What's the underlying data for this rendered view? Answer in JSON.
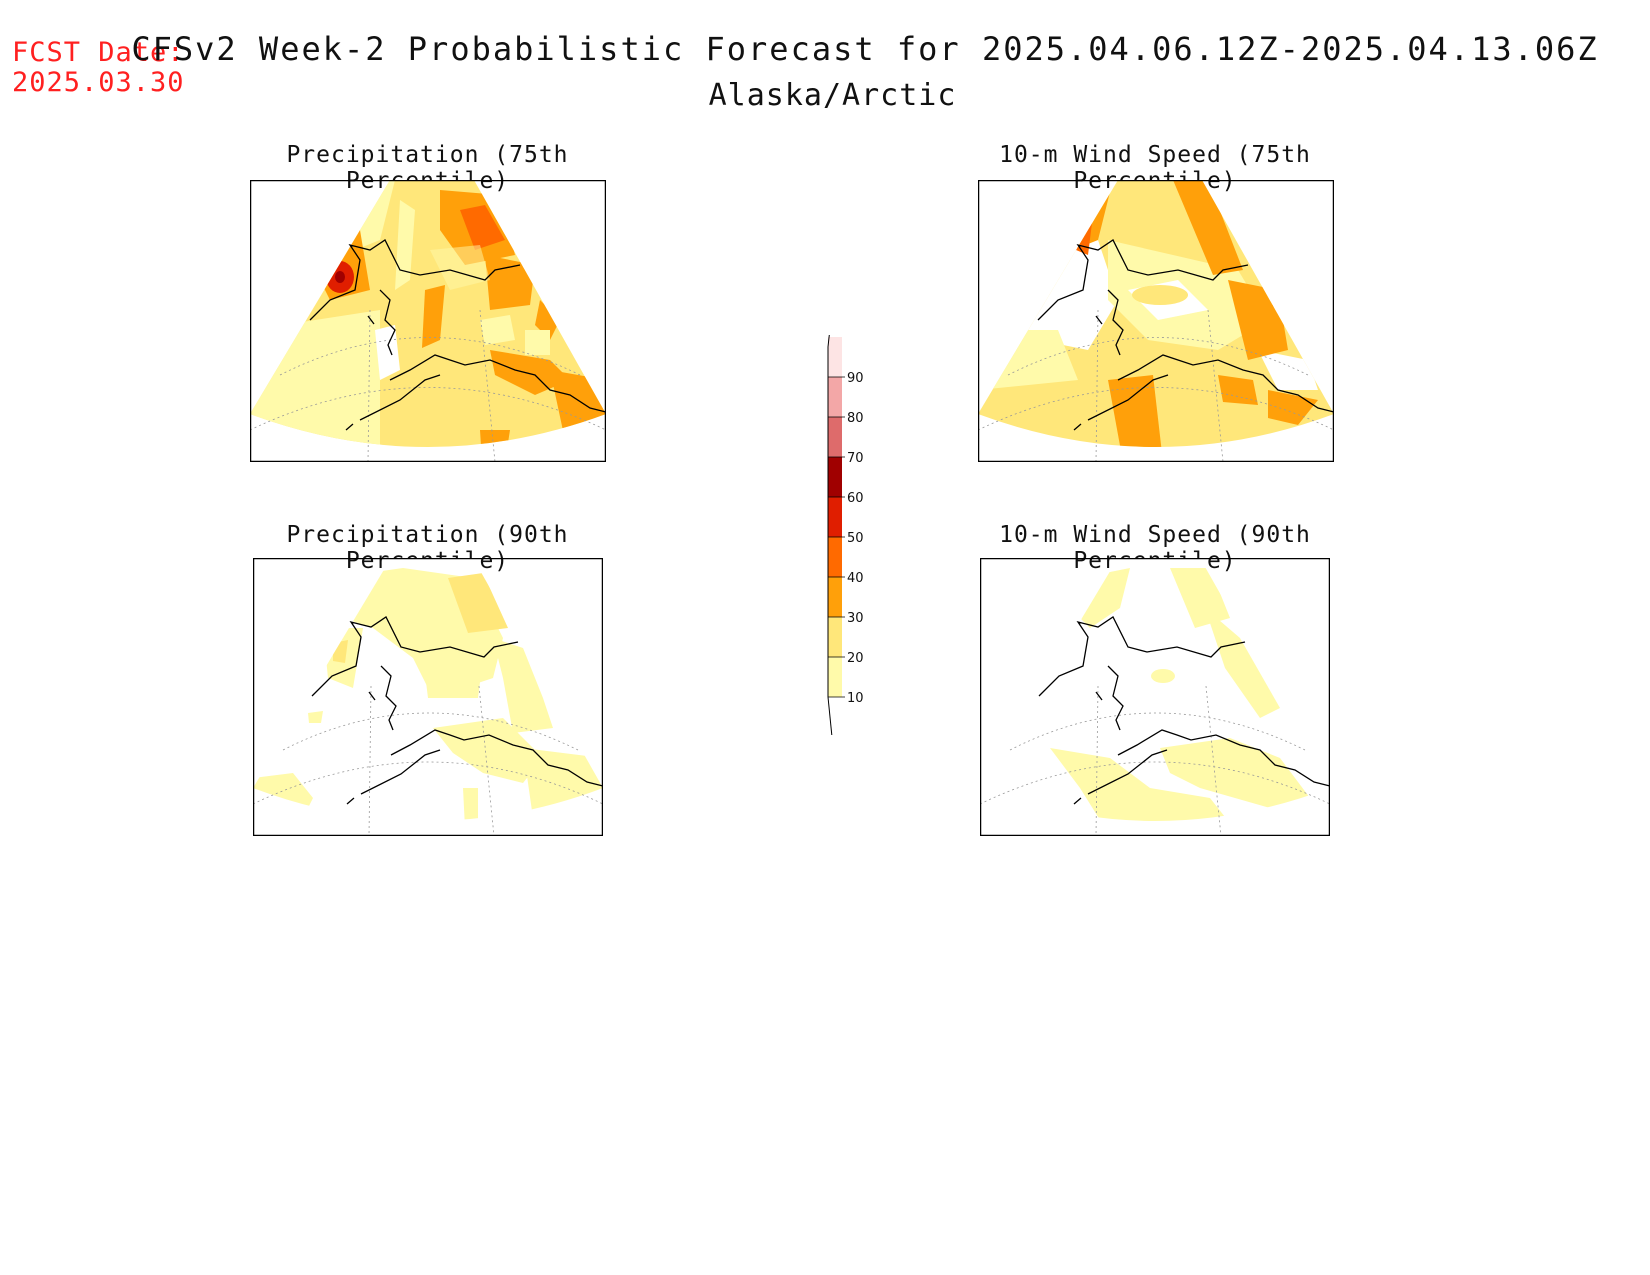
{
  "header": {
    "fcst_label": "FCST Date:",
    "fcst_date": "2025.03.30",
    "title": "CFSv2 Week-2 Probabilistic Forecast for 2025.04.06.12Z-2025.04.13.06Z",
    "subtitle": "Alaska/Arctic"
  },
  "panels": [
    {
      "title": "Precipitation (75th Percentile)"
    },
    {
      "title": "10-m Wind Speed (75th Percentile)"
    },
    {
      "title": "Precipitation (90th Percentile)"
    },
    {
      "title": "10-m Wind Speed (90th Percentile)"
    }
  ],
  "legend": {
    "levels": [
      "10",
      "20",
      "30",
      "40",
      "50",
      "60",
      "70",
      "80",
      "90"
    ],
    "colors": [
      "#fffaaa",
      "#ffe77a",
      "#ffa00a",
      "#ff6a00",
      "#e01e00",
      "#a00000",
      "#de6b6b",
      "#f3a7a7",
      "#fde4e4"
    ]
  },
  "colors": {
    "c10": "#fffaaa",
    "c20": "#ffe77a",
    "c30": "#ffa00a",
    "c40": "#ff6a00",
    "c50": "#e01e00",
    "c60": "#a00000",
    "fcst_text": "#ff2020"
  }
}
